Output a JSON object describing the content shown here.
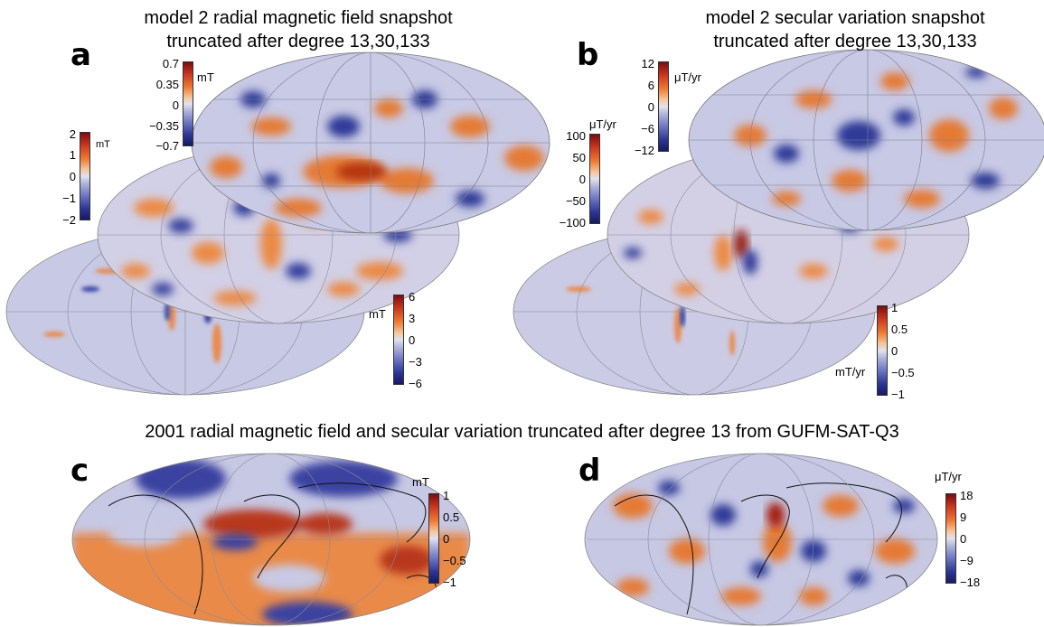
{
  "titles": {
    "a_line1": "model 2 radial magnetic field snapshot",
    "a_line2": "truncated after degree 13,30,133",
    "b_line1": "model 2 secular variation snapshot",
    "b_line2": "truncated after degree 13,30,133",
    "bottom": "2001 radial magnetic field and secular variation truncated after degree 13 from GUFM-SAT-Q3"
  },
  "panels": {
    "a": "a",
    "b": "b",
    "c": "c",
    "d": "d"
  },
  "colorbars": {
    "a_deg13": {
      "unit": "mT",
      "ticks": [
        "0.7",
        "0.35",
        "0",
        "−0.35",
        "−0.7"
      ]
    },
    "a_deg30": {
      "unit": "mT",
      "ticks": [
        "2",
        "1",
        "0",
        "−1",
        "−2"
      ]
    },
    "a_deg133": {
      "unit": "mT",
      "ticks": [
        "6",
        "3",
        "0",
        "−3",
        "−6"
      ]
    },
    "b_deg13": {
      "unit": "μT/yr",
      "ticks": [
        "12",
        "6",
        "0",
        "−6",
        "−12"
      ]
    },
    "b_deg30": {
      "unit": "μT/yr",
      "ticks": [
        "100",
        "50",
        "0",
        "−50",
        "−100"
      ]
    },
    "b_deg133": {
      "unit": "mT/yr",
      "ticks": [
        "1",
        "0.5",
        "0",
        "−0.5",
        "−1"
      ]
    },
    "c": {
      "unit": "mT",
      "ticks": [
        "1",
        "0.5",
        "0",
        "−0.5",
        "−1"
      ]
    },
    "d": {
      "unit": "μT/yr",
      "ticks": [
        "18",
        "9",
        "0",
        "−9",
        "−18"
      ]
    }
  },
  "colors": {
    "positive": "#c9361f",
    "negative": "#2b3592",
    "neutral": "#dcdcec"
  }
}
